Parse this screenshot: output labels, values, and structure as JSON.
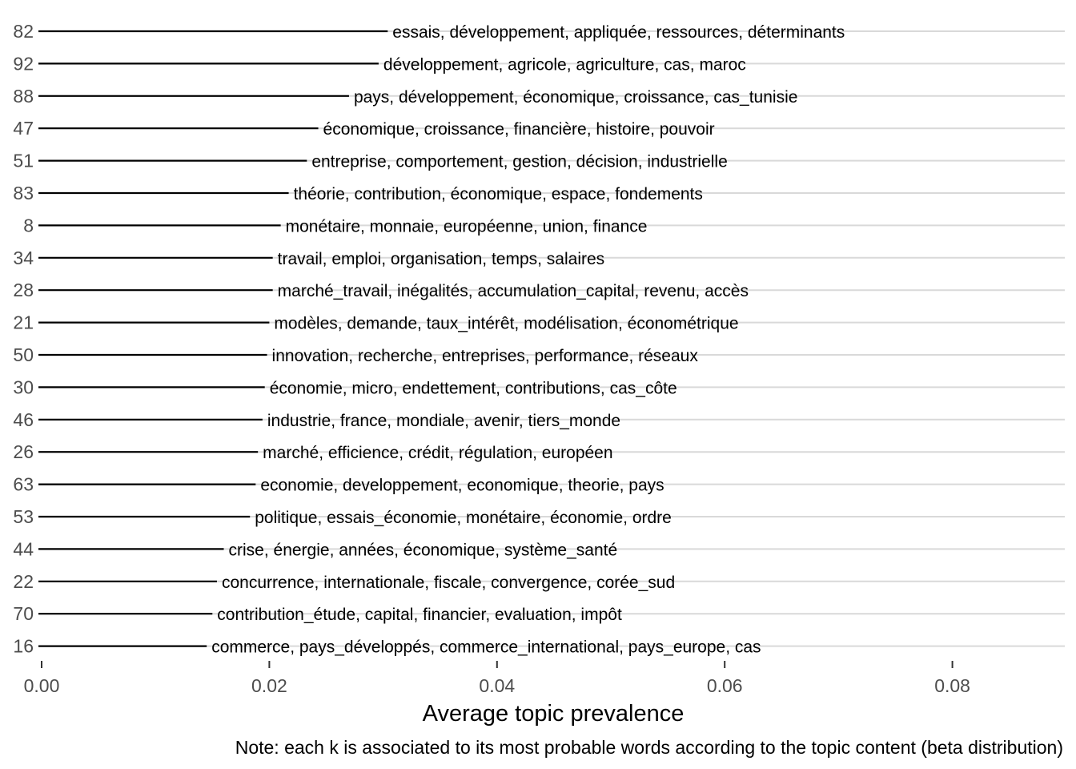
{
  "chart_data": {
    "type": "bar",
    "orientation": "horizontal",
    "xlabel": "Average topic prevalence",
    "caption": "Note: each k is associated to its most probable words according to the topic content (beta distribution)",
    "xlim": [
      0,
      0.09
    ],
    "xticks": [
      0.0,
      0.02,
      0.04,
      0.06,
      0.08
    ],
    "xtick_labels": [
      "0.00",
      "0.02",
      "0.04",
      "0.06",
      "0.08"
    ],
    "grid": "horizontal major lines",
    "categories": [
      "82",
      "92",
      "88",
      "47",
      "51",
      "83",
      "8",
      "34",
      "28",
      "21",
      "50",
      "30",
      "46",
      "26",
      "63",
      "53",
      "44",
      "22",
      "70",
      "16"
    ],
    "values": [
      0.0304,
      0.0296,
      0.027,
      0.0243,
      0.0233,
      0.0217,
      0.021,
      0.0203,
      0.0203,
      0.02,
      0.0198,
      0.0196,
      0.0194,
      0.019,
      0.0188,
      0.0183,
      0.016,
      0.0154,
      0.015,
      0.0145
    ],
    "word_labels": [
      "essais, développement, appliquée, ressources, déterminants",
      "développement, agricole, agriculture, cas, maroc",
      "pays, développement, économique, croissance, cas_tunisie",
      "économique, croissance, financière, histoire, pouvoir",
      "entreprise, comportement, gestion, décision, industrielle",
      "théorie, contribution, économique, espace, fondements",
      "monétaire, monnaie, européenne, union, finance",
      "travail, emploi, organisation, temps, salaires",
      "marché_travail, inégalités, accumulation_capital, revenu, accès",
      "modèles, demande, taux_intérêt, modélisation, économétrique",
      "innovation, recherche, entreprises, performance, réseaux",
      "économie, micro, endettement, contributions, cas_côte",
      "industrie, france, mondiale, avenir, tiers_monde",
      "marché, efficience, crédit, régulation, européen",
      "economie, developpement, economique, theorie, pays",
      "politique, essais_économie, monétaire, économie, ordre",
      "crise, énergie, années, économique, système_santé",
      "concurrence, internationale, fiscale, convergence, corée_sud",
      "contribution_étude, capital, financier, evaluation, impôt",
      "commerce, pays_développés, commerce_international, pays_europe, cas"
    ]
  }
}
